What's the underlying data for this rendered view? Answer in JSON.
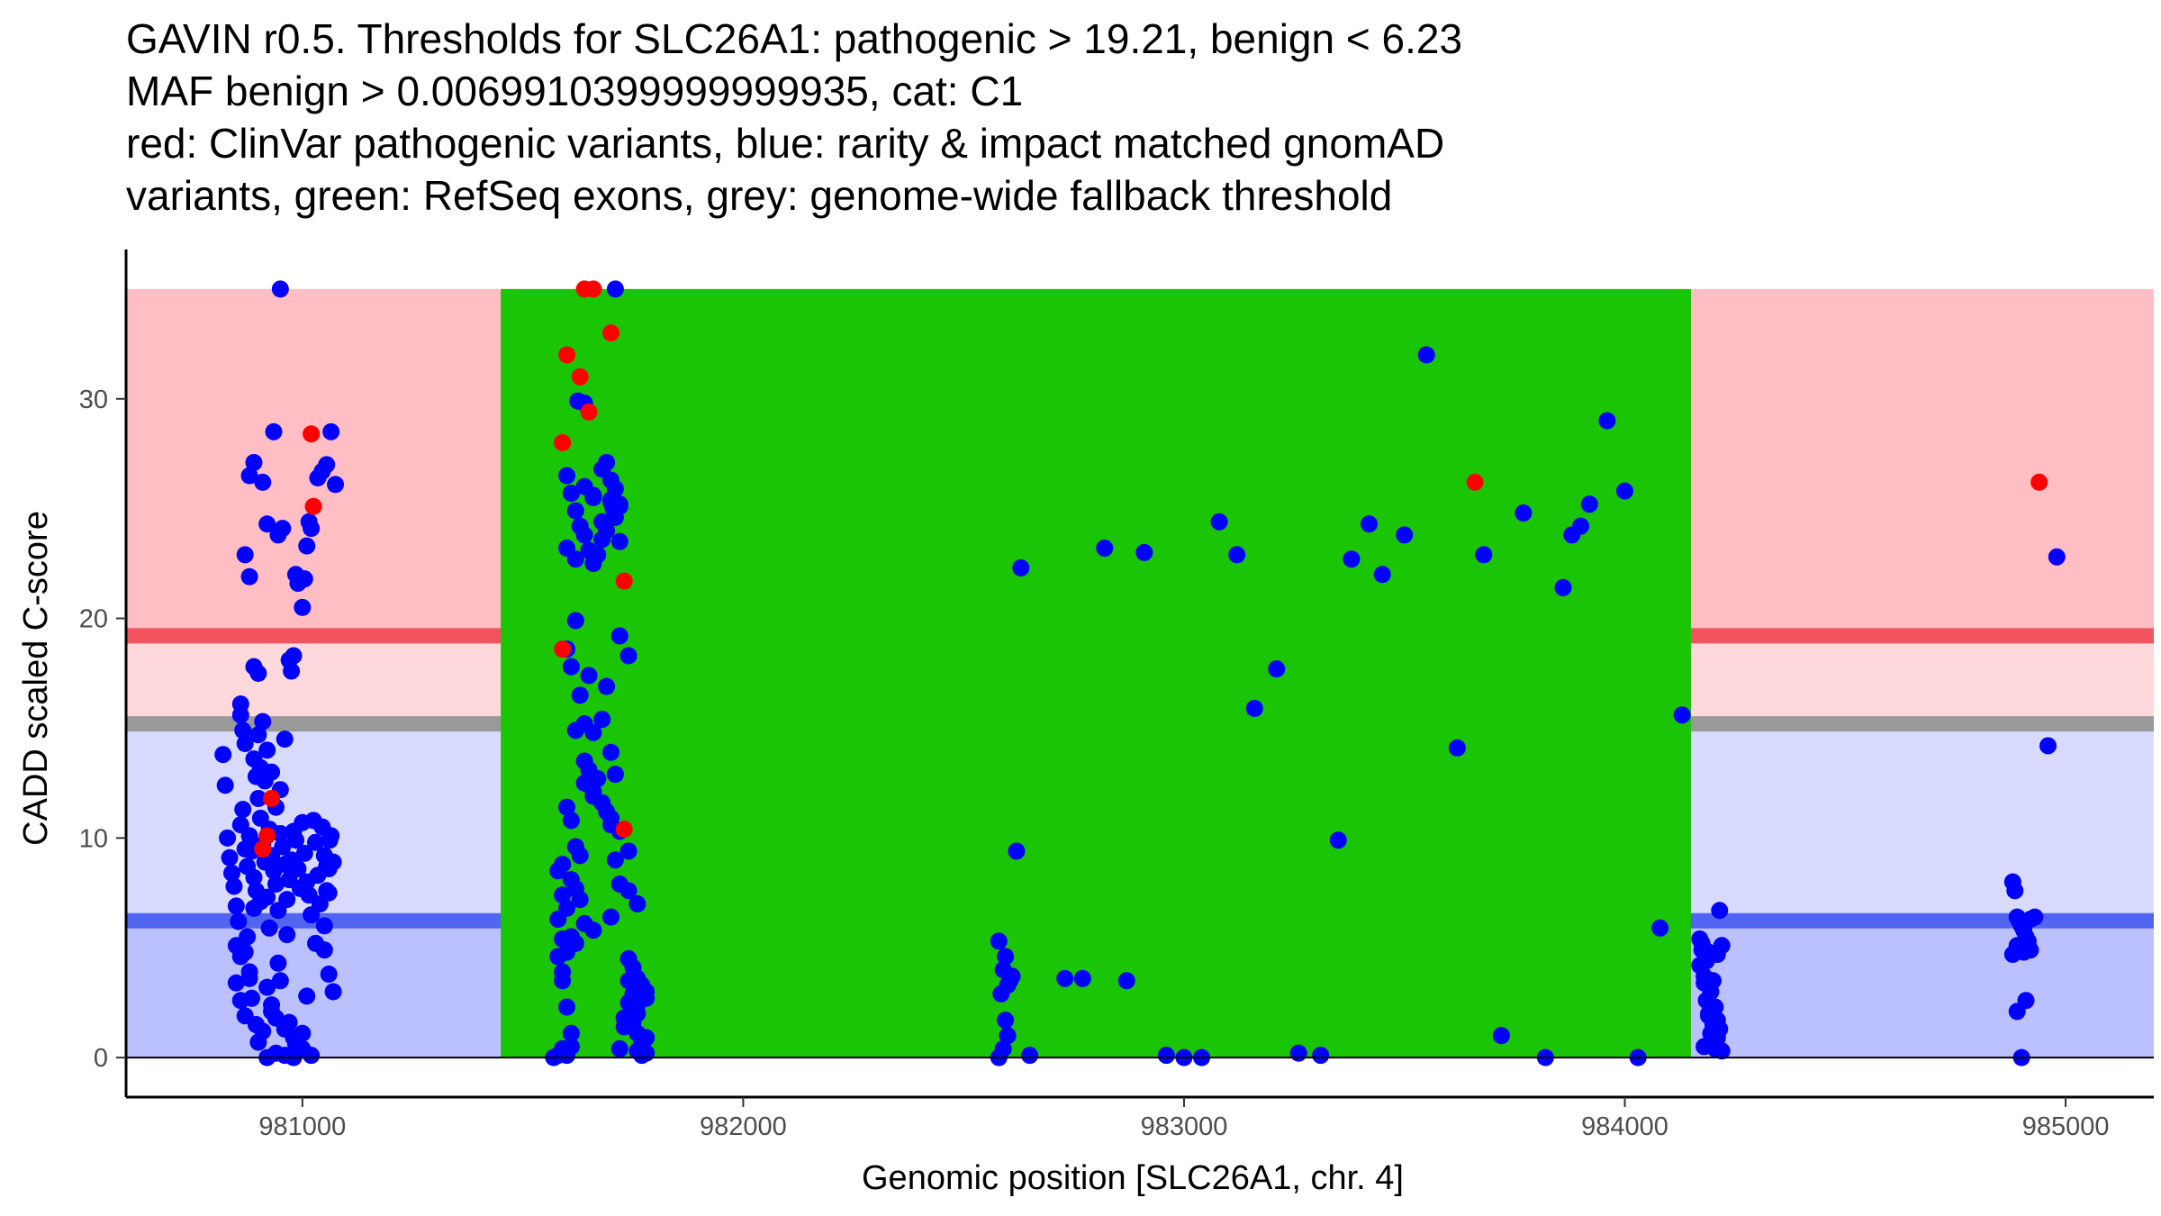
{
  "chart_data": {
    "type": "scatter",
    "title_lines": [
      "GAVIN r0.5. Thresholds for SLC26A1: pathogenic > 19.21, benign < 6.23",
      "MAF benign > 0.0069910399999999935, cat: C1",
      "red: ClinVar pathogenic variants, blue: rarity & impact matched gnomAD",
      "variants, green: RefSeq exons, grey: genome-wide fallback threshold"
    ],
    "xlabel": "Genomic position [SLC26A1, chr. 4]",
    "ylabel": "CADD scaled C-score",
    "xlim": [
      980600,
      985200
    ],
    "ylim": [
      -1.8,
      36.8
    ],
    "x_ticks": [
      981000,
      982000,
      983000,
      984000,
      985000
    ],
    "x_tick_labels": [
      "981000",
      "982000",
      "983000",
      "984000",
      "985000"
    ],
    "y_ticks": [
      0,
      10,
      20,
      30
    ],
    "y_tick_labels": [
      "0",
      "10",
      "20",
      "30"
    ],
    "thresholds": {
      "pathogenic": 19.21,
      "benign": 6.23,
      "genome_wide_fallback": 15.2,
      "max": 35
    },
    "exon_region": [
      981450,
      984150
    ],
    "colors": {
      "pathogenic_zone": "#ffbec4",
      "gap_zone": "#ffd8dc",
      "light_benign_zone": "#d8dbff",
      "benign_zone": "#bbc0ff",
      "pathogenic_line": "#f2545f",
      "benign_line": "#5265f0",
      "fallback_line": "#999999",
      "exon": "#19c504",
      "gnomad": "#0000ff",
      "clinvar": "#ff0000"
    },
    "series": [
      {
        "name": "gnomAD",
        "x": [
          980950,
          980820,
          980825,
          980830,
          980835,
          980840,
          980845,
          980850,
          980855,
          980860,
          980865,
          980870,
          980875,
          980880,
          980885,
          980890,
          980895,
          980900,
          980905,
          980910,
          980915,
          980920,
          980925,
          980930,
          980935,
          980940,
          980945,
          980950,
          980955,
          980960,
          980965,
          980970,
          980975,
          980980,
          980985,
          980990,
          980995,
          981000,
          981005,
          981010,
          981015,
          981020,
          981025,
          981030,
          981035,
          981040,
          981045,
          981050,
          981055,
          981060,
          981065,
          981070,
          980870,
          980880,
          980890,
          980900,
          980860,
          980860,
          980865,
          980870,
          980890,
          980895,
          980900,
          980905,
          980910,
          980915,
          980920,
          980930,
          980940,
          980950,
          980960,
          980970,
          980980,
          980990,
          981000,
          981010,
          981020,
          980850,
          980870,
          980880,
          980920,
          980930,
          980940,
          980960,
          980980,
          981000,
          981020,
          980850,
          980860,
          980870,
          980900,
          980910,
          980930,
          980950,
          980970,
          981050,
          981060,
          981070,
          980880,
          980890,
          980910,
          980920,
          980935,
          980945,
          980955,
          980975,
          980985,
          981005,
          981015,
          981035,
          981045,
          981055,
          981065,
          981075,
          980860,
          980875,
          980885,
          980895,
          980920,
          980940,
          980960,
          980980,
          980880,
          980890,
          980905,
          980925,
          980945,
          980965,
          980985,
          981000,
          981010,
          981030,
          981050,
          981055,
          981060,
          981062,
          981710,
          981625,
          981640,
          981660,
          981680,
          981690,
          981700,
          981705,
          981710,
          981720,
          981600,
          981610,
          981620,
          981630,
          981640,
          981650,
          981660,
          981670,
          981680,
          981690,
          981700,
          981710,
          981720,
          981600,
          981620,
          981640,
          981660,
          981680,
          981700,
          981720,
          981740,
          981620,
          981650,
          981690,
          981720,
          981600,
          981610,
          981630,
          981640,
          981660,
          981680,
          981700,
          981710,
          981620,
          981640,
          981660,
          981680,
          981700,
          981720,
          981740,
          981590,
          981600,
          981610,
          981620,
          981630,
          981640,
          981650,
          981660,
          981670,
          981690,
          981700,
          981710,
          981580,
          981590,
          981600,
          981610,
          981620,
          981630,
          981640,
          981660,
          981700,
          981720,
          981740,
          981760,
          981580,
          981590,
          981600,
          981610,
          981620,
          981740,
          981750,
          981760,
          981770,
          981580,
          981590,
          981600,
          981610,
          981740,
          981750,
          981760,
          981770,
          981780,
          981590,
          981600,
          981610,
          981730,
          981740,
          981750,
          981760,
          981770,
          981780,
          981570,
          981580,
          981590,
          981730,
          981740,
          981760,
          981770,
          981780,
          981590,
          981720,
          981740,
          981760,
          981780,
          981590,
          981600,
          982580,
          982590,
          982595,
          982600,
          982585,
          982580,
          982590,
          982600,
          982605,
          982595,
          982610,
          982620,
          982630,
          982650,
          982730,
          982770,
          982820,
          982870,
          982910,
          982960,
          983000,
          983040,
          983080,
          983120,
          983160,
          983210,
          983260,
          983310,
          983350,
          983380,
          983420,
          983450,
          983500,
          983550,
          983620,
          983680,
          983720,
          983770,
          983820,
          983880,
          983920,
          983960,
          984000,
          984030,
          984080,
          984130,
          983860,
          983900,
          984170,
          984175,
          984180,
          984185,
          984190,
          984195,
          984200,
          984205,
          984210,
          984215,
          984220,
          984170,
          984180,
          984190,
          984200,
          984210,
          984220,
          984175,
          984185,
          984195,
          984205,
          984215,
          984180,
          984190,
          984200,
          984210,
          984880,
          984885,
          984890,
          984895,
          984900,
          984905,
          984910,
          984915,
          984920,
          984880,
          984890,
          984900,
          984910,
          984920,
          984890,
          984905,
          984930,
          984960,
          984980
        ],
        "y": [
          35,
          13.8,
          12.4,
          10.0,
          9.1,
          8.4,
          7.8,
          6.9,
          6.2,
          10.6,
          11.3,
          9.5,
          8.7,
          10.1,
          9.4,
          8.2,
          7.6,
          11.8,
          10.9,
          9.7,
          8.9,
          7.3,
          10.4,
          9.2,
          8.5,
          7.9,
          6.7,
          10.2,
          9.6,
          8.8,
          7.2,
          8.1,
          9.0,
          10.3,
          9.9,
          8.6,
          7.7,
          10.7,
          9.3,
          8.0,
          7.4,
          6.5,
          10.8,
          9.8,
          8.3,
          7.0,
          10.5,
          9.2,
          8.7,
          7.5,
          10.1,
          8.9,
          22.9,
          21.9,
          17.8,
          17.5,
          16.1,
          15.6,
          14.9,
          14.3,
          13.6,
          12.8,
          14.7,
          13.2,
          15.3,
          12.6,
          14.0,
          13.0,
          11.4,
          12.2,
          14.5,
          18.1,
          18.3,
          21.6,
          20.5,
          23.3,
          24.1,
          5.1,
          4.8,
          3.6,
          3.2,
          2.1,
          1.8,
          1.3,
          0.9,
          0.4,
          0.1,
          3.4,
          2.6,
          1.9,
          0.7,
          1.2,
          2.4,
          3.5,
          1.6,
          4.9,
          3.8,
          3.0,
          26.5,
          27.1,
          26.2,
          24.3,
          28.5,
          23.8,
          24.1,
          17.6,
          22.0,
          21.8,
          24.4,
          26.4,
          26.7,
          27.0,
          28.5,
          26.1,
          4.6,
          5.5,
          2.7,
          1.5,
          0.0,
          0.2,
          0.1,
          0.0,
          3.9,
          6.8,
          7.1,
          5.9,
          4.3,
          5.6,
          0.6,
          1.1,
          2.8,
          5.2,
          6.0,
          7.6,
          8.6,
          9.9,
          35,
          29.9,
          29.8,
          25.6,
          26.8,
          27.1,
          25.4,
          25.0,
          24.6,
          23.5,
          26.5,
          25.7,
          24.9,
          24.2,
          23.8,
          23.1,
          22.5,
          22.9,
          23.6,
          24.0,
          25.3,
          25.9,
          25.1,
          23.2,
          22.7,
          26.0,
          25.5,
          24.4,
          26.3,
          25.2,
          18.3,
          19.9,
          17.4,
          16.9,
          19.2,
          18.6,
          17.8,
          16.5,
          15.2,
          14.8,
          15.4,
          13.9,
          12.9,
          14.9,
          13.5,
          12.1,
          11.6,
          10.9,
          10.3,
          9.4,
          8.8,
          11.4,
          10.8,
          9.6,
          9.2,
          12.5,
          13.1,
          11.9,
          12.7,
          11.2,
          10.6,
          9.0,
          8.5,
          7.4,
          6.8,
          8.1,
          7.7,
          7.2,
          6.1,
          5.8,
          6.4,
          7.9,
          7.6,
          7.0,
          6.3,
          5.4,
          4.8,
          5.5,
          5.2,
          4.5,
          4.1,
          3.6,
          3.2,
          4.6,
          3.9,
          2.3,
          1.1,
          3.5,
          2.9,
          2.4,
          3.3,
          2.7,
          0.4,
          0.2,
          0.5,
          1.4,
          1.9,
          1.6,
          0.3,
          0.1,
          0.2,
          0.0,
          0.1,
          0.3,
          1.8,
          1.5,
          1.1,
          0.6,
          0.9,
          0.2,
          0.4,
          2.5,
          2.0,
          3.0,
          3.5,
          0.1,
          0.0,
          0.4,
          1.7,
          1.0,
          2.9,
          5.3,
          4.0,
          3.3,
          3.5,
          4.6,
          3.7,
          9.4,
          22.3,
          0.1,
          3.6,
          3.6,
          23.2,
          3.5,
          23.0,
          0.1,
          0.0,
          0.0,
          24.4,
          22.9,
          15.9,
          17.7,
          0.2,
          0.1,
          9.9,
          22.7,
          24.3,
          22.0,
          23.8,
          32.0,
          14.1,
          22.9,
          1.0,
          24.8,
          0.0,
          23.8,
          25.2,
          29.0,
          25.8,
          0.0,
          5.9,
          15.6,
          21.4,
          24.2,
          5.4,
          4.9,
          3.4,
          2.6,
          1.9,
          1.1,
          0.7,
          0.4,
          4.7,
          6.7,
          5.1,
          4.2,
          3.7,
          2.0,
          1.5,
          0.9,
          0.3,
          5.2,
          4.4,
          3.0,
          2.3,
          1.3,
          0.5,
          4.8,
          3.5,
          1.7,
          8.0,
          7.6,
          6.4,
          6.2,
          6.0,
          5.8,
          5.5,
          5.3,
          4.9,
          4.7,
          2.1,
          0.0,
          2.6,
          6.3,
          5.1,
          4.8,
          6.4,
          14.2,
          22.8
        ]
      },
      {
        "name": "ClinVar pathogenic",
        "x": [
          980930,
          980920,
          980910,
          981020,
          981025,
          981640,
          981660,
          981630,
          981600,
          981590,
          981700,
          981650,
          981730,
          981590,
          981730,
          983660,
          984940
        ],
        "y": [
          11.8,
          10.1,
          9.5,
          28.4,
          25.1,
          35,
          35,
          31.0,
          32.0,
          28.0,
          33.0,
          29.4,
          21.7,
          18.6,
          10.4,
          26.2,
          26.2
        ]
      }
    ]
  }
}
